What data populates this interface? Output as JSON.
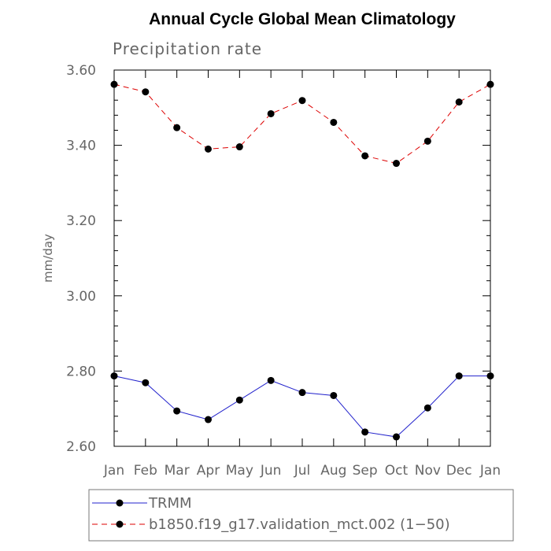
{
  "chart_data": {
    "type": "line",
    "title": "Annual Cycle Global Mean Climatology",
    "subtitle": "Precipitation rate",
    "xlabel": "",
    "ylabel": "mm/day",
    "categories": [
      "Jan",
      "Feb",
      "Mar",
      "Apr",
      "May",
      "Jun",
      "Jul",
      "Aug",
      "Sep",
      "Oct",
      "Nov",
      "Dec",
      "Jan"
    ],
    "ylim": [
      2.6,
      3.6
    ],
    "yticks": [
      2.6,
      2.8,
      3.0,
      3.2,
      3.4,
      3.6
    ],
    "ytick_labels": [
      "2.60",
      "2.80",
      "3.00",
      "3.20",
      "3.40",
      "3.60"
    ],
    "grid": false,
    "legend_position": "bottom",
    "series": [
      {
        "name": "TRMM",
        "color": "#2222cc",
        "dash": "solid",
        "values": [
          2.787,
          2.769,
          2.694,
          2.671,
          2.723,
          2.775,
          2.743,
          2.735,
          2.638,
          2.625,
          2.702,
          2.787,
          2.787
        ]
      },
      {
        "name": "b1850.f19_g17.validation_mct.002 (1−50)",
        "color": "#dd0000",
        "dash": "dashed",
        "values": [
          3.562,
          3.542,
          3.447,
          3.39,
          3.396,
          3.484,
          3.519,
          3.461,
          3.372,
          3.352,
          3.411,
          3.515,
          3.562
        ]
      }
    ]
  }
}
